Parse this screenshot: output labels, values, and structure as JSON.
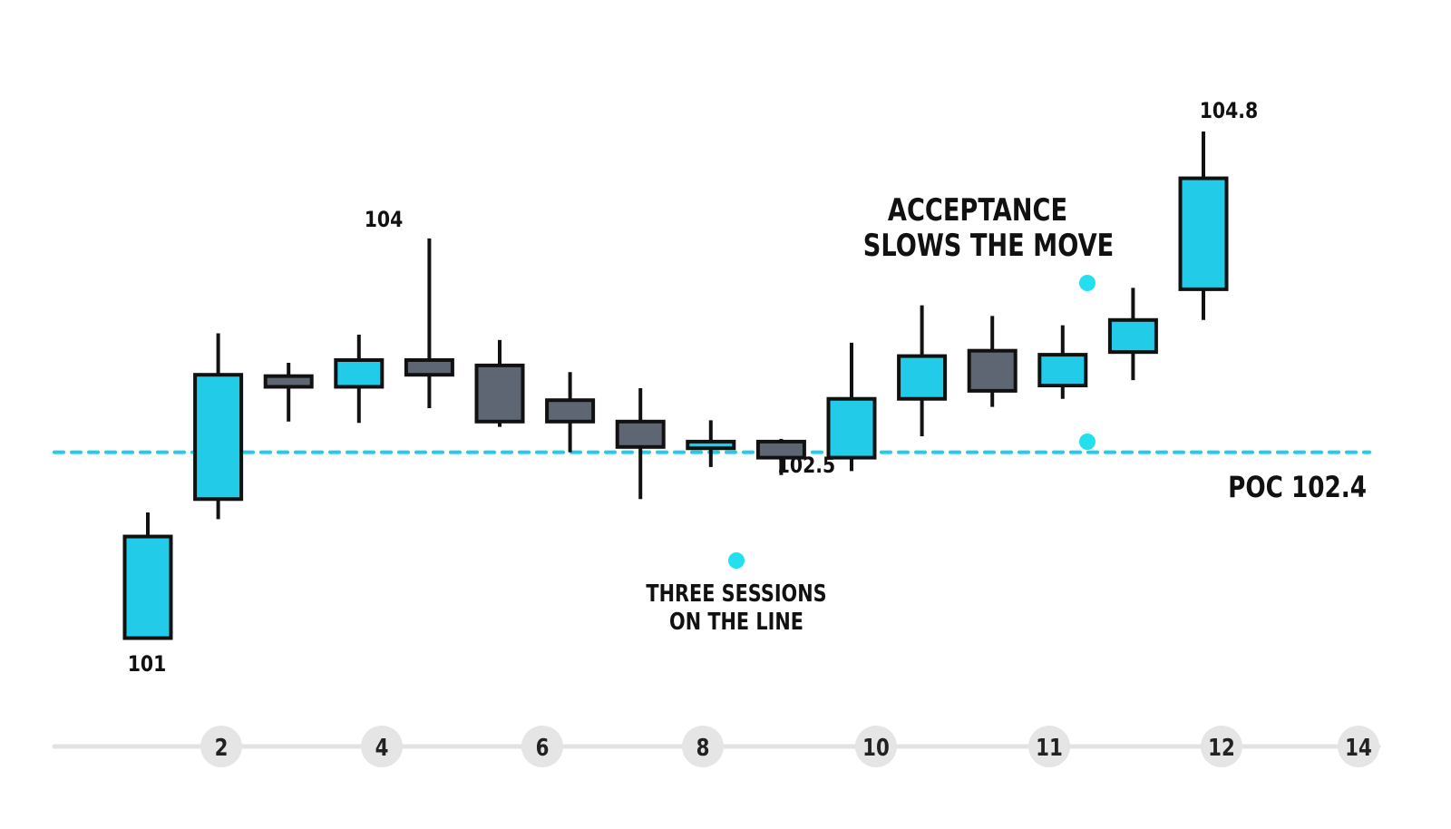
{
  "chart_data": {
    "type": "candlestick",
    "title": "",
    "xlabel": "",
    "ylabel": "",
    "ylim": [
      100.5,
      105.2
    ],
    "x_ticks": [
      "2",
      "4",
      "6",
      "8",
      "10",
      "11",
      "12",
      "14"
    ],
    "colors": {
      "up": "#22cce8",
      "down": "#5f6673",
      "outline": "#111111",
      "poc": "#22cce8",
      "marker": "#22e0ee",
      "axis": "#e3e3e3",
      "tick_bg": "#e5e5e5"
    },
    "candles": [
      {
        "open": 101.01,
        "high": 101.95,
        "low": 101.0,
        "close": 101.77,
        "dir": "up"
      },
      {
        "open": 102.05,
        "high": 103.29,
        "low": 101.9,
        "close": 102.98,
        "dir": "up"
      },
      {
        "open": 102.97,
        "high": 103.07,
        "low": 102.63,
        "close": 102.89,
        "dir": "down"
      },
      {
        "open": 102.89,
        "high": 103.28,
        "low": 102.62,
        "close": 103.09,
        "dir": "up"
      },
      {
        "open": 103.09,
        "high": 104.0,
        "low": 102.73,
        "close": 102.98,
        "dir": "down"
      },
      {
        "open": 103.05,
        "high": 103.24,
        "low": 102.59,
        "close": 102.63,
        "dir": "down"
      },
      {
        "open": 102.79,
        "high": 103.0,
        "low": 102.4,
        "close": 102.63,
        "dir": "down"
      },
      {
        "open": 102.63,
        "high": 102.88,
        "low": 102.05,
        "close": 102.44,
        "dir": "down"
      },
      {
        "open": 102.43,
        "high": 102.64,
        "low": 102.29,
        "close": 102.48,
        "dir": "up"
      },
      {
        "open": 102.48,
        "high": 102.5,
        "low": 102.23,
        "close": 102.36,
        "dir": "down"
      },
      {
        "open": 102.36,
        "high": 103.22,
        "low": 102.26,
        "close": 102.8,
        "dir": "up"
      },
      {
        "open": 102.8,
        "high": 103.5,
        "low": 102.52,
        "close": 103.12,
        "dir": "up"
      },
      {
        "open": 103.16,
        "high": 103.42,
        "low": 102.74,
        "close": 102.86,
        "dir": "down"
      },
      {
        "open": 102.9,
        "high": 103.35,
        "low": 102.8,
        "close": 103.13,
        "dir": "up"
      },
      {
        "open": 103.15,
        "high": 103.63,
        "low": 102.94,
        "close": 103.39,
        "dir": "up"
      },
      {
        "open": 103.62,
        "high": 104.8,
        "low": 103.39,
        "close": 104.45,
        "dir": "up"
      }
    ],
    "poc": {
      "label": "POC 102.4",
      "value": 102.4
    },
    "price_labels": [
      "101",
      "104",
      "102.5",
      "104.8"
    ],
    "annotations": {
      "three_sessions": [
        "THREE SESSIONS",
        "ON THE LINE"
      ],
      "acceptance": [
        "ACCEPTANCE",
        "SLOWS THE MOVE"
      ]
    }
  }
}
